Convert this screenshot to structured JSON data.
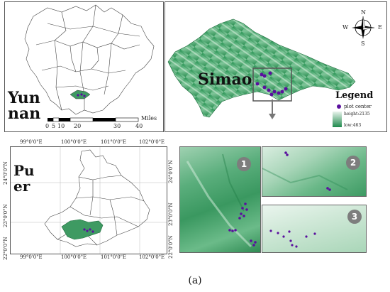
{
  "yunnan_panel": {
    "label_line1": "Yun",
    "label_line2": "nan",
    "scale_ticks": [
      "0",
      "5",
      "10",
      "20",
      "30",
      "40"
    ],
    "scale_unit": "Miles"
  },
  "simao_panel": {
    "label": "Simao",
    "legend_title": "Legend",
    "legend_point": "plot center",
    "legend_high": "height:2135",
    "legend_low": "low:463",
    "compass": {
      "n": "N",
      "s": "S",
      "e": "E",
      "w": "W"
    }
  },
  "puer_panel": {
    "label_line1": "Pu",
    "label_line2": "er",
    "lon_labels_top": [
      "99°0'0\"E",
      "100°0'0\"E",
      "101°0'0\"E",
      "102°0'0\"E"
    ],
    "lon_labels_bottom": [
      "99°0'0\"E",
      "100°0'0\"E",
      "101°0'0\"E",
      "102°0'0\"E"
    ],
    "lat_labels_left": [
      "24°0'0\"N",
      "23°0'0\"N",
      "22°0'0\"N"
    ],
    "lat_labels_right": [
      "24°0'0\"N",
      "23°0'0\"N",
      "22°0'0\"N"
    ]
  },
  "detail_panels": {
    "badge_1": "1",
    "badge_2": "2",
    "badge_3": "3"
  },
  "caption": "(a)",
  "colors": {
    "dem_high": "#f2f7f3",
    "dem_low": "#1e8a4c",
    "point": "#5a0f9e",
    "roi": "#555555"
  }
}
